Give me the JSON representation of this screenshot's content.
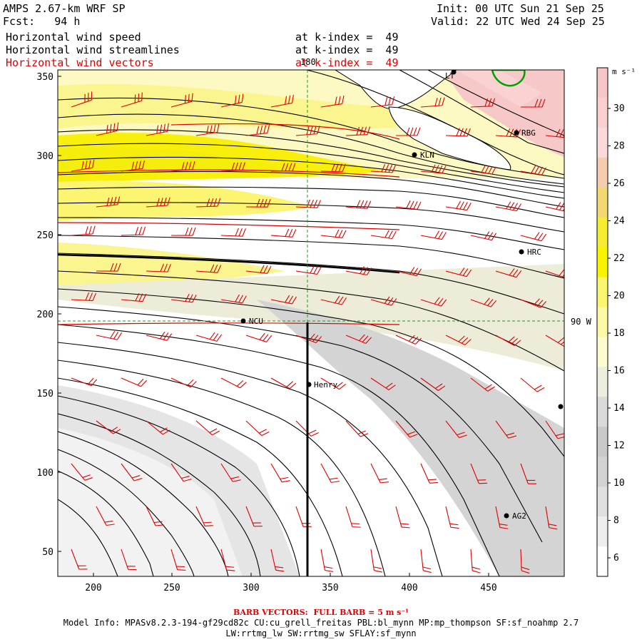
{
  "header": {
    "model_title": "AMPS 2.67-km WRF SP",
    "forecast": "Fcst:   94 h",
    "init": "Init: 00 UTC Sun 21 Sep 25",
    "valid": "Valid: 22 UTC Wed 24 Sep 25"
  },
  "layers": [
    {
      "name": "Horizontal wind speed",
      "level": "at k-index =  49",
      "color": "#000000"
    },
    {
      "name": "Horizontal wind streamlines",
      "level": "at k-index =  49",
      "color": "#000000"
    },
    {
      "name": "Horizontal wind vectors",
      "level": "at k-index =  49",
      "color": "#e00000"
    }
  ],
  "map": {
    "x_ticks": [
      "200",
      "250",
      "300",
      "350",
      "400",
      "450"
    ],
    "y_ticks": [
      "50",
      "100",
      "150",
      "200",
      "250",
      "300",
      "350"
    ],
    "meridian_label": "180",
    "parallel_label": "90 W",
    "stations": [
      {
        "label": "LT",
        "icon": "station-dot"
      },
      {
        "label": "RBG",
        "icon": "station-dot"
      },
      {
        "label": "KLN",
        "icon": "station-dot"
      },
      {
        "label": "HRC",
        "icon": "station-dot"
      },
      {
        "label": "NCU",
        "icon": "station-dot"
      },
      {
        "label": "Henry",
        "icon": "station-dot"
      },
      {
        "label": "AG2",
        "icon": "station-dot"
      }
    ]
  },
  "colorbar": {
    "units": "m s⁻¹",
    "labels": [
      "30",
      "28",
      "26",
      "24",
      "22",
      "20",
      "18",
      "16",
      "14",
      "12",
      "10",
      "8",
      "6"
    ],
    "colors": [
      "#f7c6c6",
      "#f9d0cf",
      "#fadada",
      "#f5ccb0",
      "#f2d870",
      "#f5ee30",
      "#f8f400",
      "#fbf670",
      "#fcf9a6",
      "#fdfccf",
      "#eeeede",
      "#dadada",
      "#c9c9c9",
      "#d2d2d2",
      "#e0e0e0",
      "#eeeeee",
      "#ffffff"
    ]
  },
  "footer": {
    "barb_note": "BARB VECTORS:  FULL BARB = 5 m s⁻¹",
    "model_info_1": "Model Info: MPASv8.2.3-194-gf29cd82c CU:cu_grell_freitas PBL:bl_mynn MP:mp_thompson SF:sf_noahmp 2.7",
    "model_info_2": "LW:rrtmg_lw SW:rrtmg_sw SFLAY:sf_mynn"
  }
}
